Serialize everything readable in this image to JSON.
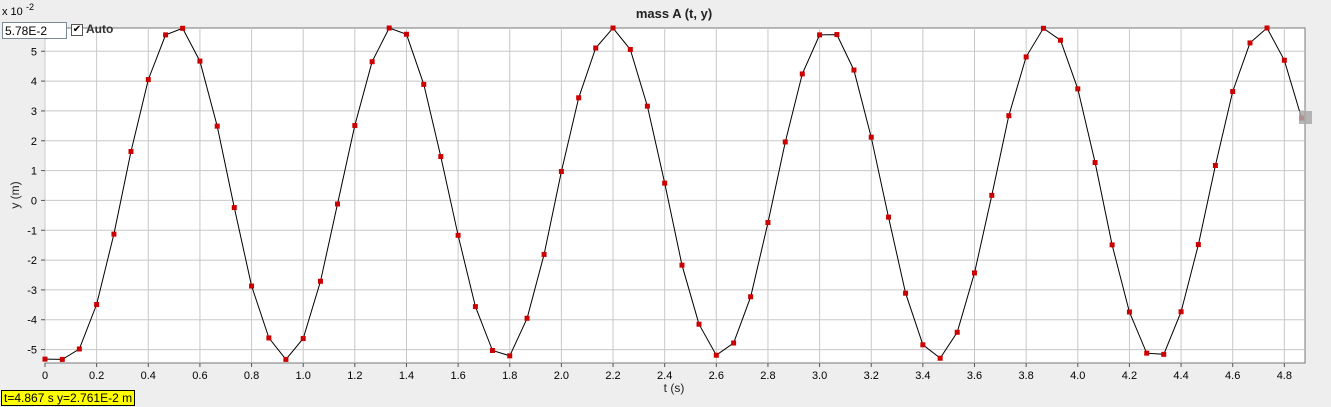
{
  "chart_data": {
    "type": "line",
    "title": "mass A (t, y)",
    "xlabel": "t (s)",
    "ylabel": "y (m)",
    "y_scale_base": "x 10",
    "y_scale_exponent": "-2",
    "xlim": [
      0,
      4.88
    ],
    "ylim": [
      -5.45,
      5.78
    ],
    "grid": true,
    "x_ticks": [
      0,
      0.2,
      0.4,
      0.6,
      0.8,
      1.0,
      1.2,
      1.4,
      1.6,
      1.8,
      2.0,
      2.2,
      2.4,
      2.6,
      2.8,
      3.0,
      3.2,
      3.4,
      3.6,
      3.8,
      4.0,
      4.2,
      4.4,
      4.6,
      4.8
    ],
    "x_tick_labels": [
      "0",
      "0.2",
      "0.4",
      "0.6",
      "0.8",
      "1.0",
      "1.2",
      "1.4",
      "1.6",
      "1.8",
      "2.0",
      "2.2",
      "2.4",
      "2.6",
      "2.8",
      "3.0",
      "3.2",
      "3.4",
      "3.6",
      "3.8",
      "4.0",
      "4.2",
      "4.4",
      "4.6",
      "4.8"
    ],
    "y_ticks": [
      5,
      4,
      3,
      2,
      1,
      0,
      -1,
      -2,
      -3,
      -4,
      -5
    ],
    "y_tick_labels": [
      "5",
      "4",
      "3",
      "2",
      "1",
      "0",
      "-1",
      "-2",
      "-3",
      "-4",
      "-5"
    ],
    "series": [
      {
        "color": "#000000",
        "marker_color": "#cc0000",
        "x": [
          0,
          0.067,
          0.133,
          0.2,
          0.267,
          0.333,
          0.4,
          0.467,
          0.533,
          0.6,
          0.667,
          0.733,
          0.8,
          0.867,
          0.933,
          1.0,
          1.067,
          1.133,
          1.2,
          1.267,
          1.333,
          1.4,
          1.467,
          1.533,
          1.6,
          1.667,
          1.733,
          1.8,
          1.867,
          1.933,
          2.0,
          2.067,
          2.133,
          2.2,
          2.267,
          2.333,
          2.4,
          2.467,
          2.533,
          2.6,
          2.667,
          2.733,
          2.8,
          2.867,
          2.933,
          3.0,
          3.067,
          3.133,
          3.2,
          3.267,
          3.333,
          3.4,
          3.467,
          3.533,
          3.6,
          3.667,
          3.733,
          3.8,
          3.867,
          3.933,
          4.0,
          4.067,
          4.133,
          4.2,
          4.267,
          4.333,
          4.4,
          4.467,
          4.533,
          4.6,
          4.667,
          4.733,
          4.8,
          4.867
        ],
        "y": [
          -5.32,
          -5.33,
          -4.98,
          -3.49,
          -1.13,
          1.64,
          4.05,
          5.55,
          5.77,
          4.67,
          2.49,
          -0.24,
          -2.87,
          -4.61,
          -5.33,
          -4.63,
          -2.71,
          -0.12,
          2.51,
          4.65,
          5.78,
          5.57,
          3.89,
          1.47,
          -1.17,
          -3.56,
          -5.03,
          -5.21,
          -3.95,
          -1.81,
          0.97,
          3.44,
          5.11,
          5.78,
          5.06,
          3.16,
          0.58,
          -2.17,
          -4.15,
          -5.19,
          -4.78,
          -3.23,
          -0.74,
          1.96,
          4.24,
          5.55,
          5.56,
          4.37,
          2.12,
          -0.56,
          -3.11,
          -4.84,
          -5.29,
          -4.42,
          -2.43,
          0.17,
          2.84,
          4.81,
          5.77,
          5.37,
          3.74,
          1.27,
          -1.49,
          -3.74,
          -5.12,
          -5.16,
          -3.73,
          -1.48,
          1.17,
          3.65,
          5.28,
          5.78,
          4.7,
          2.76
        ]
      }
    ]
  },
  "controls": {
    "max_value": "5.78E-2",
    "auto_label": "Auto",
    "auto_checked": "✔"
  },
  "readout": "t=4.867 s  y=2.761E-2 m"
}
